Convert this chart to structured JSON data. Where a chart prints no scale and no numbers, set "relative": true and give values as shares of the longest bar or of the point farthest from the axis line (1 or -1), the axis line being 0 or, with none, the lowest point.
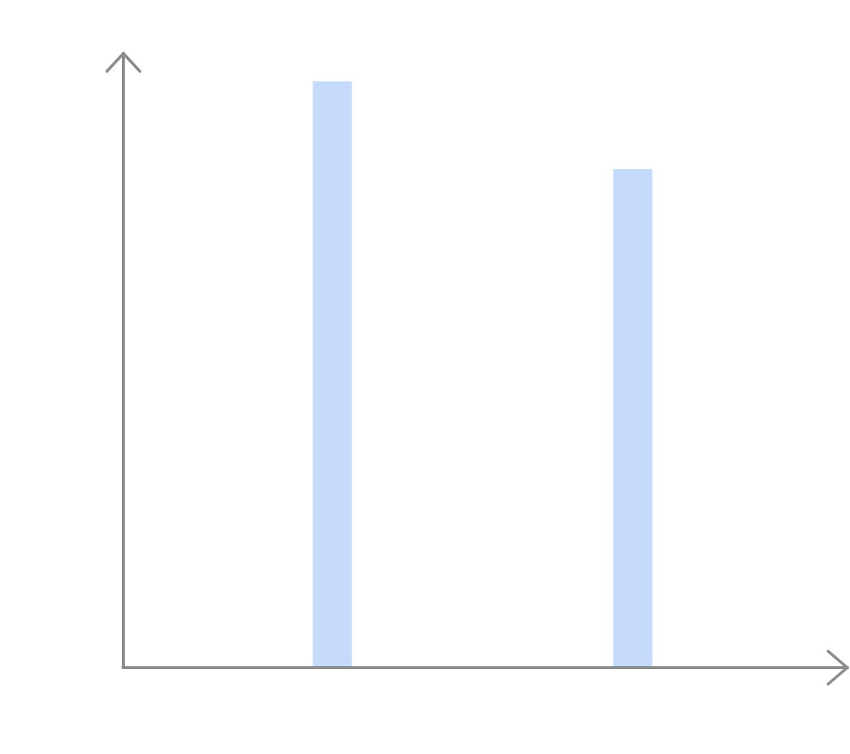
{
  "chart_data": {
    "type": "bar",
    "relative": true,
    "categories": [
      null,
      null
    ],
    "values": [
      1,
      0.85
    ],
    "color": "#c6dafc",
    "grid": false
  }
}
